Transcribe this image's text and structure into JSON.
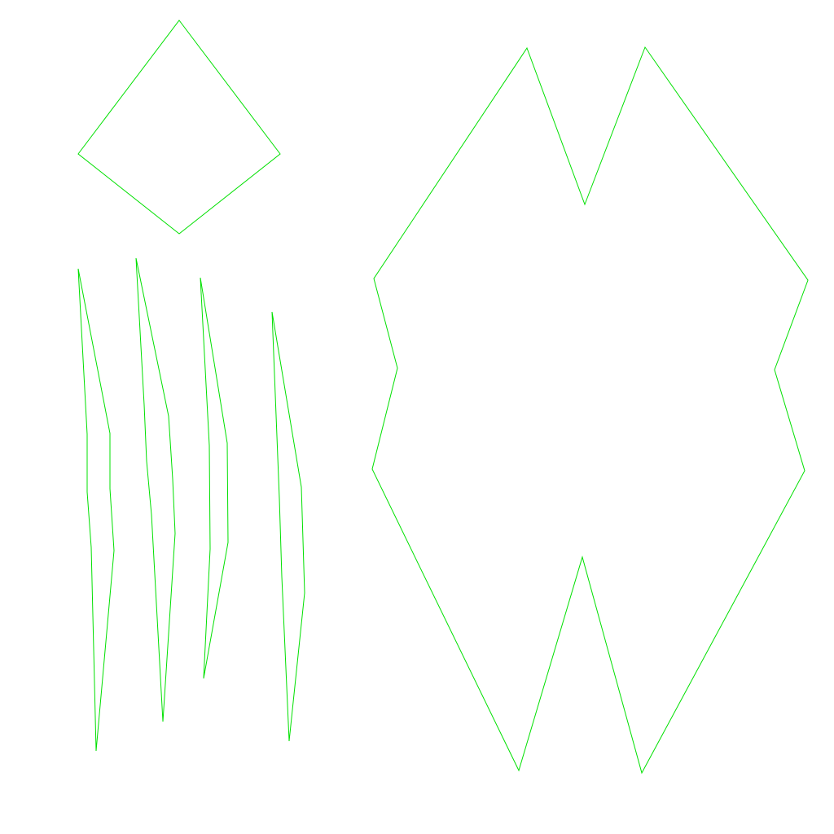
{
  "canvas": {
    "background": "#ffffff",
    "stroke_color": "#00e000"
  },
  "shapes": [
    {
      "name": "diamond-outline"
    },
    {
      "name": "sliver-outline-1"
    },
    {
      "name": "sliver-outline-2"
    },
    {
      "name": "sliver-outline-3"
    },
    {
      "name": "sliver-outline-4"
    },
    {
      "name": "notched-hexagon-outline"
    }
  ]
}
